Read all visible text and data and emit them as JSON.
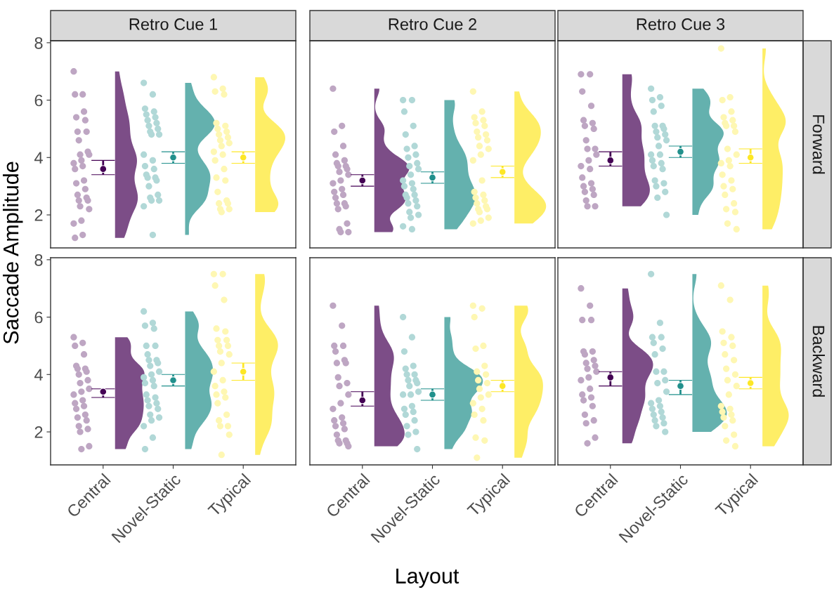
{
  "chart_data": [
    {
      "type": "scatter",
      "title": "Retro Cue 1",
      "ylabel": "Saccade Amplitude",
      "categories": [
        "Central",
        "Novel-Static",
        "Typical"
      ],
      "ylim": [
        0.85,
        8.07
      ],
      "yticks": [
        2,
        4,
        6,
        8
      ],
      "tick_labels": "y",
      "series": [
        {
          "color": "#bea6c3",
          "x": [
            "Central",
            "Central",
            "Central",
            "Central",
            "Central",
            "Central",
            "Central",
            "Central",
            "Central",
            "Central",
            "Central",
            "Central",
            "Central",
            "Central",
            "Central",
            "Central",
            "Central",
            "Central",
            "Central",
            "Central",
            "Central",
            "Central",
            "Central",
            "Central",
            "Central",
            "Central",
            "Central",
            "Central",
            "Central"
          ],
          "values": [
            7.0,
            6.2,
            6.2,
            5.6,
            5.4,
            5.3,
            4.9,
            4.9,
            4.6,
            4.2,
            4.1,
            4.1,
            3.9,
            3.8,
            3.7,
            3.6,
            3.2,
            3.1,
            2.9,
            2.7,
            2.6,
            2.5,
            2.5,
            2.3,
            2.2,
            1.8,
            1.7,
            1.3,
            1.2
          ]
        },
        {
          "color": "#b1d8d7",
          "x": [
            "Novel-Static",
            "Novel-Static",
            "Novel-Static",
            "Novel-Static",
            "Novel-Static",
            "Novel-Static",
            "Novel-Static",
            "Novel-Static",
            "Novel-Static",
            "Novel-Static",
            "Novel-Static",
            "Novel-Static",
            "Novel-Static",
            "Novel-Static",
            "Novel-Static",
            "Novel-Static",
            "Novel-Static",
            "Novel-Static",
            "Novel-Static",
            "Novel-Static",
            "Novel-Static",
            "Novel-Static",
            "Novel-Static",
            "Novel-Static",
            "Novel-Static",
            "Novel-Static",
            "Novel-Static",
            "Novel-Static"
          ],
          "values": [
            6.6,
            6.2,
            5.7,
            5.6,
            5.5,
            5.4,
            5.3,
            5.2,
            5.1,
            5.0,
            4.9,
            4.8,
            4.8,
            4.1,
            3.9,
            3.7,
            3.6,
            3.4,
            3.3,
            3.3,
            3.2,
            3.0,
            2.7,
            2.6,
            2.5,
            2.5,
            2.3,
            1.3
          ]
        },
        {
          "color": "#fef7b3",
          "x": [
            "Typical",
            "Typical",
            "Typical",
            "Typical",
            "Typical",
            "Typical",
            "Typical",
            "Typical",
            "Typical",
            "Typical",
            "Typical",
            "Typical",
            "Typical",
            "Typical",
            "Typical",
            "Typical",
            "Typical",
            "Typical",
            "Typical",
            "Typical",
            "Typical",
            "Typical",
            "Typical",
            "Typical",
            "Typical",
            "Typical"
          ],
          "values": [
            6.8,
            6.4,
            6.3,
            6.2,
            5.2,
            5.1,
            5.0,
            4.9,
            4.8,
            4.7,
            4.6,
            4.5,
            4.4,
            4.2,
            4.1,
            3.9,
            3.6,
            3.3,
            3.2,
            2.8,
            2.5,
            2.4,
            2.4,
            2.2,
            2.2,
            2.1
          ]
        },
        {
          "marker": "circle",
          "colors": [
            "#440154",
            "#21908c",
            "#fde725"
          ],
          "values": [
            3.6,
            4.0,
            4.0
          ],
          "errors": [
            [
              3.4,
              3.9
            ],
            [
              3.8,
              4.2
            ],
            [
              3.8,
              4.2
            ]
          ]
        }
      ]
    },
    {
      "type": "scatter",
      "title": "Retro Cue 2",
      "categories": [
        "Central",
        "Novel-Static",
        "Typical"
      ],
      "ylim": [
        0.85,
        8.07
      ],
      "yticks": [
        2,
        4,
        6,
        8
      ],
      "tick_labels": false,
      "series": [
        {
          "color": "#bea6c3",
          "x": [
            "Central",
            "Central",
            "Central",
            "Central",
            "Central",
            "Central",
            "Central",
            "Central",
            "Central",
            "Central",
            "Central",
            "Central",
            "Central",
            "Central",
            "Central",
            "Central",
            "Central",
            "Central",
            "Central",
            "Central",
            "Central",
            "Central",
            "Central",
            "Central",
            "Central",
            "Central"
          ],
          "values": [
            6.4,
            5.1,
            4.9,
            4.4,
            4.1,
            3.9,
            3.8,
            3.7,
            3.7,
            3.6,
            3.5,
            3.4,
            3.2,
            3.1,
            2.9,
            2.8,
            2.7,
            2.6,
            2.4,
            2.4,
            2.3,
            2.2,
            1.7,
            1.5,
            1.4,
            1.4
          ]
        },
        {
          "color": "#b1d8d7",
          "x": [
            "Novel-Static",
            "Novel-Static",
            "Novel-Static",
            "Novel-Static",
            "Novel-Static",
            "Novel-Static",
            "Novel-Static",
            "Novel-Static",
            "Novel-Static",
            "Novel-Static",
            "Novel-Static",
            "Novel-Static",
            "Novel-Static",
            "Novel-Static",
            "Novel-Static",
            "Novel-Static",
            "Novel-Static",
            "Novel-Static",
            "Novel-Static",
            "Novel-Static",
            "Novel-Static",
            "Novel-Static",
            "Novel-Static",
            "Novel-Static",
            "Novel-Static",
            "Novel-Static",
            "Novel-Static",
            "Novel-Static"
          ],
          "values": [
            6.0,
            6.0,
            5.6,
            5.1,
            4.8,
            4.4,
            4.3,
            4.1,
            4.0,
            3.8,
            3.7,
            3.6,
            3.4,
            3.2,
            3.1,
            3.0,
            2.9,
            2.7,
            2.7,
            2.6,
            2.5,
            2.4,
            2.3,
            2.1,
            2.0,
            1.9,
            1.6,
            1.5
          ]
        },
        {
          "color": "#fef7b3",
          "x": [
            "Typical",
            "Typical",
            "Typical",
            "Typical",
            "Typical",
            "Typical",
            "Typical",
            "Typical",
            "Typical",
            "Typical",
            "Typical",
            "Typical",
            "Typical",
            "Typical",
            "Typical",
            "Typical",
            "Typical",
            "Typical",
            "Typical",
            "Typical",
            "Typical",
            "Typical",
            "Typical",
            "Typical",
            "Typical",
            "Typical",
            "Typical"
          ],
          "values": [
            6.3,
            5.6,
            5.4,
            5.3,
            5.2,
            5.1,
            4.9,
            4.8,
            4.7,
            4.6,
            4.4,
            4.3,
            4.1,
            3.9,
            3.2,
            2.8,
            2.7,
            2.6,
            2.5,
            2.4,
            2.3,
            2.2,
            2.2,
            2.1,
            1.9,
            1.8,
            1.7
          ]
        },
        {
          "marker": "circle",
          "colors": [
            "#440154",
            "#21908c",
            "#fde725"
          ],
          "values": [
            3.2,
            3.3,
            3.5
          ],
          "errors": [
            [
              3.0,
              3.4
            ],
            [
              3.1,
              3.5
            ],
            [
              3.3,
              3.7
            ]
          ]
        }
      ]
    },
    {
      "type": "scatter",
      "title": "Retro Cue 3",
      "y2label": "Forward",
      "categories": [
        "Central",
        "Novel-Static",
        "Typical"
      ],
      "ylim": [
        0.85,
        8.07
      ],
      "yticks": [
        2,
        4,
        6,
        8
      ],
      "tick_labels": false,
      "series": [
        {
          "color": "#bea6c3",
          "x": [
            "Central",
            "Central",
            "Central",
            "Central",
            "Central",
            "Central",
            "Central",
            "Central",
            "Central",
            "Central",
            "Central",
            "Central",
            "Central",
            "Central",
            "Central",
            "Central",
            "Central",
            "Central",
            "Central",
            "Central",
            "Central",
            "Central",
            "Central",
            "Central"
          ],
          "values": [
            6.9,
            6.9,
            6.3,
            5.8,
            5.3,
            5.2,
            5.1,
            5.0,
            4.6,
            4.3,
            4.3,
            4.1,
            3.9,
            3.7,
            3.6,
            3.3,
            3.1,
            3.0,
            2.9,
            2.8,
            2.7,
            2.5,
            2.3,
            2.3
          ]
        },
        {
          "color": "#b1d8d7",
          "x": [
            "Novel-Static",
            "Novel-Static",
            "Novel-Static",
            "Novel-Static",
            "Novel-Static",
            "Novel-Static",
            "Novel-Static",
            "Novel-Static",
            "Novel-Static",
            "Novel-Static",
            "Novel-Static",
            "Novel-Static",
            "Novel-Static",
            "Novel-Static",
            "Novel-Static",
            "Novel-Static",
            "Novel-Static",
            "Novel-Static",
            "Novel-Static",
            "Novel-Static",
            "Novel-Static",
            "Novel-Static",
            "Novel-Static",
            "Novel-Static",
            "Novel-Static"
          ],
          "values": [
            6.4,
            6.1,
            6.0,
            5.8,
            5.6,
            5.1,
            5.1,
            5.0,
            4.9,
            4.8,
            4.7,
            4.6,
            4.4,
            4.1,
            4.1,
            3.9,
            3.8,
            3.7,
            3.6,
            3.2,
            3.1,
            3.0,
            2.8,
            2.6,
            2.0
          ]
        },
        {
          "color": "#fef7b3",
          "x": [
            "Typical",
            "Typical",
            "Typical",
            "Typical",
            "Typical",
            "Typical",
            "Typical",
            "Typical",
            "Typical",
            "Typical",
            "Typical",
            "Typical",
            "Typical",
            "Typical",
            "Typical",
            "Typical",
            "Typical",
            "Typical",
            "Typical",
            "Typical",
            "Typical",
            "Typical",
            "Typical",
            "Typical",
            "Typical"
          ],
          "values": [
            7.8,
            6.1,
            6.0,
            5.6,
            5.4,
            5.3,
            5.2,
            5.1,
            5.1,
            4.9,
            4.3,
            4.1,
            3.9,
            3.8,
            3.7,
            3.4,
            3.2,
            3.0,
            2.9,
            2.7,
            2.4,
            2.2,
            2.1,
            1.7,
            1.5
          ]
        },
        {
          "marker": "circle",
          "colors": [
            "#440154",
            "#21908c",
            "#fde725"
          ],
          "values": [
            3.9,
            4.2,
            4.0
          ],
          "errors": [
            [
              3.7,
              4.2
            ],
            [
              4.0,
              4.4
            ],
            [
              3.8,
              4.3
            ]
          ]
        }
      ]
    },
    {
      "type": "scatter",
      "categories": [
        "Central",
        "Novel-Static",
        "Typical"
      ],
      "ylim": [
        0.85,
        8.07
      ],
      "yticks": [
        2,
        4,
        6,
        8
      ],
      "series": [
        {
          "color": "#bea6c3",
          "x": [
            "Central",
            "Central",
            "Central",
            "Central",
            "Central",
            "Central",
            "Central",
            "Central",
            "Central",
            "Central",
            "Central",
            "Central",
            "Central",
            "Central",
            "Central",
            "Central",
            "Central",
            "Central",
            "Central",
            "Central",
            "Central",
            "Central",
            "Central",
            "Central",
            "Central",
            "Central"
          ],
          "values": [
            5.3,
            5.1,
            5.0,
            4.7,
            4.3,
            4.2,
            4.2,
            4.1,
            4.0,
            3.8,
            3.7,
            3.5,
            3.4,
            3.3,
            3.1,
            3.0,
            2.9,
            2.8,
            2.6,
            2.5,
            2.4,
            2.2,
            2.1,
            2.0,
            1.5,
            1.4
          ]
        },
        {
          "color": "#b1d8d7",
          "x": [
            "Novel-Static",
            "Novel-Static",
            "Novel-Static",
            "Novel-Static",
            "Novel-Static",
            "Novel-Static",
            "Novel-Static",
            "Novel-Static",
            "Novel-Static",
            "Novel-Static",
            "Novel-Static",
            "Novel-Static",
            "Novel-Static",
            "Novel-Static",
            "Novel-Static",
            "Novel-Static",
            "Novel-Static",
            "Novel-Static",
            "Novel-Static",
            "Novel-Static",
            "Novel-Static",
            "Novel-Static",
            "Novel-Static",
            "Novel-Static",
            "Novel-Static",
            "Novel-Static",
            "Novel-Static",
            "Novel-Static",
            "Novel-Static"
          ],
          "values": [
            6.2,
            5.8,
            5.7,
            5.6,
            5.0,
            5.0,
            4.7,
            4.5,
            4.5,
            4.4,
            4.3,
            4.1,
            4.0,
            3.9,
            3.8,
            3.7,
            3.6,
            3.3,
            3.2,
            3.1,
            3.0,
            2.9,
            2.8,
            2.6,
            2.5,
            2.4,
            2.2,
            1.8,
            1.4
          ]
        },
        {
          "color": "#fef7b3",
          "x": [
            "Typical",
            "Typical",
            "Typical",
            "Typical",
            "Typical",
            "Typical",
            "Typical",
            "Typical",
            "Typical",
            "Typical",
            "Typical",
            "Typical",
            "Typical",
            "Typical",
            "Typical",
            "Typical",
            "Typical",
            "Typical",
            "Typical",
            "Typical",
            "Typical",
            "Typical",
            "Typical",
            "Typical",
            "Typical",
            "Typical"
          ],
          "values": [
            7.5,
            7.5,
            7.1,
            6.6,
            5.6,
            5.5,
            5.2,
            5.2,
            5.0,
            5.0,
            4.8,
            4.7,
            4.4,
            4.1,
            3.8,
            3.6,
            3.4,
            3.3,
            3.2,
            3.0,
            2.6,
            2.4,
            2.2,
            2.2,
            1.9,
            1.2
          ]
        },
        {
          "marker": "circle",
          "colors": [
            "#440154",
            "#21908c",
            "#fde725"
          ],
          "values": [
            3.4,
            3.8,
            4.1
          ],
          "errors": [
            [
              3.2,
              3.5
            ],
            [
              3.6,
              4.0
            ],
            [
              3.8,
              4.4
            ]
          ]
        }
      ]
    },
    {
      "type": "scatter",
      "xlabel": "Layout",
      "categories": [
        "Central",
        "Novel-Static",
        "Typical"
      ],
      "ylim": [
        0.85,
        8.07
      ],
      "yticks": [
        2,
        4,
        6,
        8
      ],
      "tick_labels": "x",
      "series": [
        {
          "color": "#bea6c3",
          "x": [
            "Central",
            "Central",
            "Central",
            "Central",
            "Central",
            "Central",
            "Central",
            "Central",
            "Central",
            "Central",
            "Central",
            "Central",
            "Central",
            "Central",
            "Central",
            "Central",
            "Central",
            "Central",
            "Central",
            "Central",
            "Central",
            "Central",
            "Central",
            "Central",
            "Central"
          ],
          "values": [
            6.4,
            5.7,
            5.0,
            5.0,
            4.8,
            4.5,
            4.4,
            4.4,
            3.9,
            3.7,
            3.6,
            3.3,
            3.0,
            2.8,
            2.5,
            2.4,
            2.3,
            2.2,
            2.1,
            1.9,
            1.7,
            1.7,
            1.6,
            1.6,
            1.5
          ]
        },
        {
          "color": "#b1d8d7",
          "x": [
            "Novel-Static",
            "Novel-Static",
            "Novel-Static",
            "Novel-Static",
            "Novel-Static",
            "Novel-Static",
            "Novel-Static",
            "Novel-Static",
            "Novel-Static",
            "Novel-Static",
            "Novel-Static",
            "Novel-Static",
            "Novel-Static",
            "Novel-Static",
            "Novel-Static",
            "Novel-Static",
            "Novel-Static",
            "Novel-Static",
            "Novel-Static",
            "Novel-Static",
            "Novel-Static",
            "Novel-Static",
            "Novel-Static"
          ],
          "values": [
            6.0,
            5.3,
            4.8,
            4.3,
            4.2,
            4.0,
            4.0,
            3.8,
            3.8,
            3.7,
            3.6,
            3.4,
            3.3,
            3.3,
            2.9,
            2.8,
            2.7,
            2.6,
            2.4,
            2.2,
            2.0,
            1.9,
            1.4
          ]
        },
        {
          "color": "#fef7b3",
          "x": [
            "Typical",
            "Typical",
            "Typical",
            "Typical",
            "Typical",
            "Typical",
            "Typical",
            "Typical",
            "Typical",
            "Typical",
            "Typical",
            "Typical",
            "Typical",
            "Typical",
            "Typical",
            "Typical",
            "Typical",
            "Typical",
            "Typical",
            "Typical"
          ],
          "values": [
            6.4,
            6.3,
            6.0,
            5.0,
            4.9,
            4.3,
            4.1,
            4.0,
            3.8,
            3.7,
            3.5,
            3.3,
            3.2,
            3.0,
            2.8,
            2.6,
            2.4,
            1.8,
            1.7,
            1.1
          ]
        },
        {
          "marker": "circle",
          "colors": [
            "#440154",
            "#21908c",
            "#fde725"
          ],
          "values": [
            3.1,
            3.3,
            3.6
          ],
          "errors": [
            [
              2.9,
              3.4
            ],
            [
              3.1,
              3.5
            ],
            [
              3.4,
              3.8
            ]
          ]
        }
      ]
    },
    {
      "type": "scatter",
      "y2label": "Backward",
      "categories": [
        "Central",
        "Novel-Static",
        "Typical"
      ],
      "ylim": [
        0.85,
        8.07
      ],
      "yticks": [
        2,
        4,
        6,
        8
      ],
      "tick_labels": "x",
      "series": [
        {
          "color": "#bea6c3",
          "x": [
            "Central",
            "Central",
            "Central",
            "Central",
            "Central",
            "Central",
            "Central",
            "Central",
            "Central",
            "Central",
            "Central",
            "Central",
            "Central",
            "Central",
            "Central",
            "Central",
            "Central",
            "Central",
            "Central",
            "Central",
            "Central",
            "Central",
            "Central",
            "Central"
          ],
          "values": [
            7.0,
            6.4,
            5.9,
            5.9,
            4.8,
            4.8,
            4.7,
            4.5,
            4.4,
            4.3,
            4.2,
            4.1,
            3.9,
            3.8,
            3.5,
            3.3,
            3.2,
            3.1,
            2.9,
            2.6,
            2.4,
            2.3,
            1.8,
            1.6
          ]
        },
        {
          "color": "#b1d8d7",
          "x": [
            "Novel-Static",
            "Novel-Static",
            "Novel-Static",
            "Novel-Static",
            "Novel-Static",
            "Novel-Static",
            "Novel-Static",
            "Novel-Static",
            "Novel-Static",
            "Novel-Static",
            "Novel-Static",
            "Novel-Static",
            "Novel-Static",
            "Novel-Static",
            "Novel-Static",
            "Novel-Static",
            "Novel-Static",
            "Novel-Static",
            "Novel-Static",
            "Novel-Static",
            "Novel-Static",
            "Novel-Static",
            "Novel-Static"
          ],
          "values": [
            7.5,
            5.8,
            5.3,
            5.3,
            5.1,
            4.9,
            4.7,
            4.1,
            4.1,
            3.8,
            3.7,
            3.4,
            3.1,
            3.0,
            2.9,
            2.8,
            2.7,
            2.6,
            2.5,
            2.4,
            2.3,
            2.2,
            2.0
          ]
        },
        {
          "color": "#fef7b3",
          "x": [
            "Typical",
            "Typical",
            "Typical",
            "Typical",
            "Typical",
            "Typical",
            "Typical",
            "Typical",
            "Typical",
            "Typical",
            "Typical",
            "Typical",
            "Typical",
            "Typical",
            "Typical",
            "Typical",
            "Typical",
            "Typical",
            "Typical",
            "Typical",
            "Typical",
            "Typical",
            "Typical"
          ],
          "values": [
            7.1,
            6.6,
            5.5,
            5.3,
            5.1,
            5.0,
            4.7,
            4.5,
            4.2,
            4.0,
            3.8,
            3.6,
            3.3,
            2.9,
            2.8,
            2.7,
            2.6,
            2.5,
            2.4,
            2.2,
            1.9,
            1.7,
            1.5
          ]
        },
        {
          "marker": "circle",
          "colors": [
            "#440154",
            "#21908c",
            "#fde725"
          ],
          "values": [
            3.9,
            3.6,
            3.7
          ],
          "errors": [
            [
              3.6,
              4.1
            ],
            [
              3.3,
              3.8
            ],
            [
              3.5,
              3.9
            ]
          ]
        }
      ]
    }
  ]
}
